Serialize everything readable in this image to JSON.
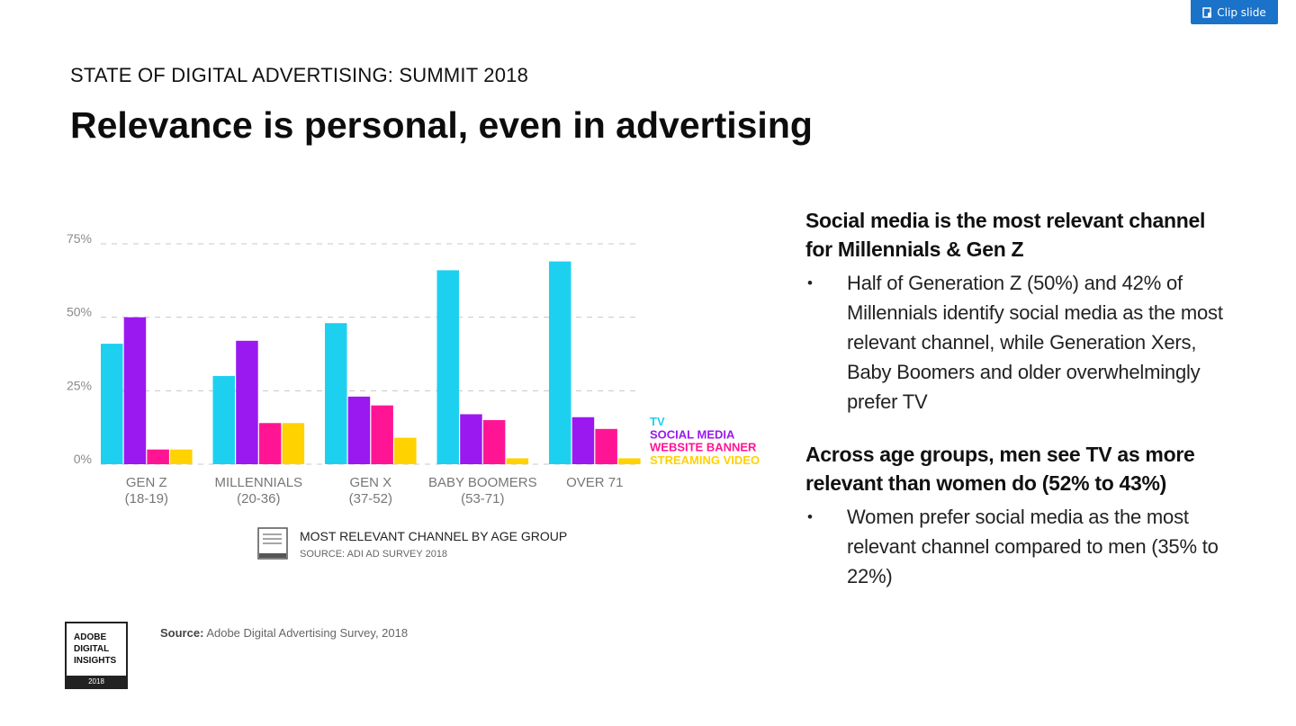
{
  "toolbar": {
    "clip_label": "Clip slide"
  },
  "slide": {
    "kicker": "STATE OF DIGITAL ADVERTISING: SUMMIT 2018",
    "headline": "Relevance is personal, even in advertising",
    "source_label": "Source:",
    "source_text": "Adobe Digital Advertising Survey, 2018",
    "logo": {
      "text": "ADOBE\nDIGITAL\nINSIGHTS",
      "year": "2018"
    }
  },
  "panel": {
    "section1": {
      "heading": "Social media is the most relevant channel for Millennials & Gen Z",
      "bullets": [
        "Half of Generation Z (50%) and 42% of Millennials identify social media as the most relevant channel, while Generation Xers, Baby Boomers and older overwhelmingly prefer TV"
      ]
    },
    "section2": {
      "heading": "Across age groups, men see TV as more relevant than women do (52% to 43%)",
      "bullets": [
        "Women prefer social media as the most relevant channel compared to men (35% to 22%)"
      ]
    },
    "bullet_char": "•"
  },
  "chart_data": {
    "type": "bar",
    "title": "MOST RELEVANT CHANNEL BY AGE GROUP",
    "subtitle": "SOURCE: ADI AD SURVEY 2018",
    "categories": [
      [
        "GEN Z",
        "(18-19)"
      ],
      [
        "MILLENNIALS",
        "(20-36)"
      ],
      [
        "GEN X",
        "(37-52)"
      ],
      [
        "BABY BOOMERS",
        "(53-71)"
      ],
      [
        "OVER 71",
        ""
      ]
    ],
    "series": [
      {
        "name": "TV",
        "color": "#1ed0f0",
        "values": [
          41,
          30,
          48,
          66,
          69
        ]
      },
      {
        "name": "SOCIAL MEDIA",
        "color": "#9a19f0",
        "values": [
          50,
          42,
          23,
          17,
          16
        ]
      },
      {
        "name": "WEBSITE BANNER",
        "color": "#ff1594",
        "values": [
          5,
          14,
          20,
          15,
          12
        ]
      },
      {
        "name": "STREAMING VIDEO",
        "color": "#ffd200",
        "values": [
          5,
          14,
          9,
          2,
          2
        ]
      }
    ],
    "yticks": [
      "0%",
      "25%",
      "50%",
      "75%"
    ],
    "ytick_values": [
      0,
      25,
      50,
      75
    ],
    "ylim": [
      0,
      75
    ],
    "grid": true,
    "legend_position": "right",
    "badge_icon": "adobe-digital-insights-badge-icon"
  }
}
